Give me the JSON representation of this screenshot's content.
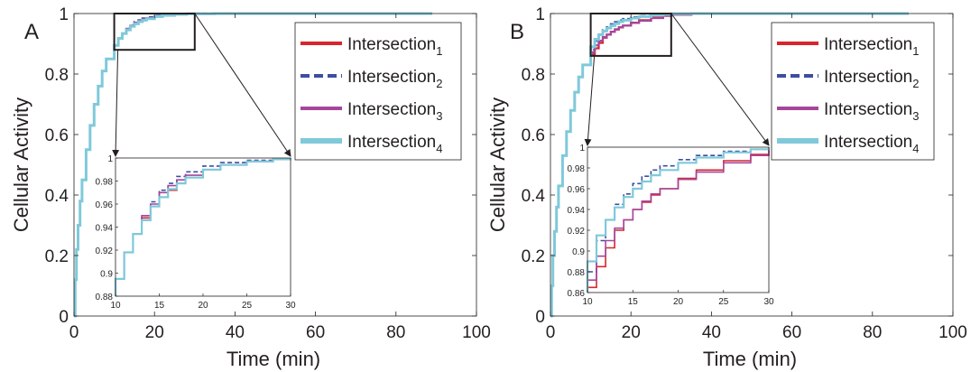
{
  "chart_data": [
    {
      "panel_label": "A",
      "type": "line",
      "xlabel": "Time (min)",
      "ylabel": "Cellular Activity",
      "xlim": [
        0,
        100
      ],
      "ylim": [
        0,
        1
      ],
      "xticks": [
        "0",
        "20",
        "40",
        "60",
        "80",
        "100"
      ],
      "yticks": [
        "0",
        "0.2",
        "0.4",
        "0.6",
        "0.8",
        "1"
      ],
      "grid": false,
      "legend_position": "top-right",
      "series": [
        {
          "name": "Intersection",
          "subscript": "1",
          "color": "#d7262e",
          "dash": "solid",
          "x": [
            0,
            0.3,
            0.6,
            1,
            1.5,
            2,
            3,
            4,
            5,
            6,
            7,
            8,
            10,
            11,
            12,
            13,
            14,
            15,
            16,
            17,
            18,
            20,
            22,
            25,
            28,
            30,
            35,
            40,
            50,
            60,
            70,
            80,
            89
          ],
          "y": [
            0,
            0.12,
            0.22,
            0.3,
            0.38,
            0.45,
            0.55,
            0.63,
            0.7,
            0.76,
            0.81,
            0.85,
            0.895,
            0.918,
            0.934,
            0.948,
            0.958,
            0.966,
            0.972,
            0.978,
            0.983,
            0.99,
            0.994,
            0.997,
            0.999,
            0.9995,
            1,
            1,
            1,
            1,
            1,
            1,
            1
          ]
        },
        {
          "name": "Intersection",
          "subscript": "2",
          "color": "#3d4ea2",
          "dash": "dashed",
          "x": [
            0,
            0.3,
            0.6,
            1,
            1.5,
            2,
            3,
            4,
            5,
            6,
            7,
            8,
            10,
            11,
            12,
            13,
            14,
            15,
            16,
            17,
            18,
            20,
            22,
            25,
            28,
            30,
            35,
            40,
            50,
            60,
            70,
            80,
            89
          ],
          "y": [
            0,
            0.12,
            0.22,
            0.3,
            0.38,
            0.45,
            0.55,
            0.63,
            0.7,
            0.76,
            0.81,
            0.85,
            0.895,
            0.918,
            0.934,
            0.95,
            0.962,
            0.972,
            0.978,
            0.984,
            0.988,
            0.993,
            0.996,
            0.998,
            0.999,
            1,
            1,
            1,
            1,
            1,
            1,
            1,
            1
          ]
        },
        {
          "name": "Intersection",
          "subscript": "3",
          "color": "#a4479c",
          "dash": "solid",
          "x": [
            0,
            0.3,
            0.6,
            1,
            1.5,
            2,
            3,
            4,
            5,
            6,
            7,
            8,
            10,
            11,
            12,
            13,
            14,
            15,
            16,
            17,
            18,
            20,
            22,
            25,
            28,
            30,
            35,
            40,
            50,
            60,
            70,
            80,
            89
          ],
          "y": [
            0,
            0.12,
            0.22,
            0.3,
            0.38,
            0.45,
            0.55,
            0.63,
            0.7,
            0.76,
            0.81,
            0.85,
            0.895,
            0.918,
            0.934,
            0.95,
            0.96,
            0.97,
            0.976,
            0.981,
            0.985,
            0.99,
            0.994,
            0.997,
            0.999,
            0.9995,
            1,
            1,
            1,
            1,
            1,
            1,
            1
          ]
        },
        {
          "name": "Intersection",
          "subscript": "4",
          "color": "#7fc9da",
          "dash": "solid",
          "x": [
            0,
            0.3,
            0.6,
            1,
            1.5,
            2,
            3,
            4,
            5,
            6,
            7,
            8,
            10,
            11,
            12,
            13,
            14,
            15,
            16,
            17,
            18,
            20,
            22,
            25,
            28,
            30,
            35,
            40,
            50,
            60,
            70,
            80,
            89
          ],
          "y": [
            0,
            0.12,
            0.22,
            0.3,
            0.38,
            0.45,
            0.55,
            0.63,
            0.7,
            0.76,
            0.81,
            0.85,
            0.895,
            0.918,
            0.934,
            0.946,
            0.958,
            0.966,
            0.973,
            0.978,
            0.983,
            0.99,
            0.994,
            0.997,
            0.999,
            0.9995,
            1,
            1,
            1,
            1,
            1,
            1,
            1
          ]
        }
      ],
      "zoom_box": {
        "xlim": [
          10,
          30
        ],
        "ylim": [
          0.88,
          1
        ]
      },
      "inset": {
        "xlim": [
          10,
          30
        ],
        "ylim": [
          0.88,
          1
        ],
        "xticks": [
          "10",
          "15",
          "20",
          "25",
          "30"
        ],
        "yticks": [
          "0.88",
          "0.9",
          "0.92",
          "0.94",
          "0.96",
          "0.98",
          "1"
        ]
      }
    },
    {
      "panel_label": "B",
      "type": "line",
      "xlabel": "Time (min)",
      "ylabel": "Cellular Activity",
      "xlim": [
        0,
        100
      ],
      "ylim": [
        0,
        1
      ],
      "xticks": [
        "0",
        "20",
        "40",
        "60",
        "80",
        "100"
      ],
      "yticks": [
        "0",
        "0.2",
        "0.4",
        "0.6",
        "0.8",
        "1"
      ],
      "grid": false,
      "legend_position": "top-right",
      "series": [
        {
          "name": "Intersection",
          "subscript": "1",
          "color": "#d7262e",
          "dash": "solid",
          "x": [
            0,
            0.3,
            0.6,
            1,
            1.5,
            2,
            3,
            4,
            5,
            6,
            7,
            8,
            10,
            11,
            12,
            13,
            14,
            15,
            16,
            17,
            18,
            20,
            22,
            25,
            28,
            30,
            35,
            40,
            50,
            60,
            70,
            80,
            89
          ],
          "y": [
            0,
            0.1,
            0.2,
            0.28,
            0.36,
            0.43,
            0.53,
            0.61,
            0.68,
            0.74,
            0.79,
            0.83,
            0.865,
            0.885,
            0.903,
            0.92,
            0.93,
            0.94,
            0.947,
            0.954,
            0.96,
            0.97,
            0.978,
            0.987,
            0.993,
            0.996,
            0.999,
            1,
            1,
            1,
            1,
            1,
            1
          ]
        },
        {
          "name": "Intersection",
          "subscript": "2",
          "color": "#3d4ea2",
          "dash": "dashed",
          "x": [
            0,
            0.3,
            0.6,
            1,
            1.5,
            2,
            3,
            4,
            5,
            6,
            7,
            8,
            10,
            11,
            12,
            13,
            14,
            15,
            16,
            17,
            18,
            20,
            22,
            25,
            28,
            30,
            35,
            40,
            50,
            60,
            70,
            80,
            89
          ],
          "y": [
            0,
            0.1,
            0.2,
            0.28,
            0.36,
            0.43,
            0.53,
            0.61,
            0.68,
            0.74,
            0.79,
            0.83,
            0.88,
            0.91,
            0.93,
            0.945,
            0.955,
            0.965,
            0.972,
            0.978,
            0.982,
            0.988,
            0.992,
            0.996,
            0.998,
            0.999,
            1,
            1,
            1,
            1,
            1,
            1,
            1
          ]
        },
        {
          "name": "Intersection",
          "subscript": "3",
          "color": "#a4479c",
          "dash": "solid",
          "x": [
            0,
            0.3,
            0.6,
            1,
            1.5,
            2,
            3,
            4,
            5,
            6,
            7,
            8,
            10,
            11,
            12,
            13,
            14,
            15,
            16,
            17,
            18,
            20,
            22,
            25,
            28,
            30,
            35,
            40,
            50,
            60,
            70,
            80,
            89
          ],
          "y": [
            0,
            0.1,
            0.2,
            0.28,
            0.36,
            0.43,
            0.53,
            0.61,
            0.68,
            0.74,
            0.79,
            0.83,
            0.872,
            0.895,
            0.91,
            0.922,
            0.93,
            0.94,
            0.948,
            0.955,
            0.96,
            0.969,
            0.976,
            0.985,
            0.992,
            0.996,
            0.999,
            1,
            1,
            1,
            1,
            1,
            1
          ]
        },
        {
          "name": "Intersection",
          "subscript": "4",
          "color": "#7fc9da",
          "dash": "solid",
          "x": [
            0,
            0.3,
            0.6,
            1,
            1.5,
            2,
            3,
            4,
            5,
            6,
            7,
            8,
            10,
            11,
            12,
            13,
            14,
            15,
            16,
            17,
            18,
            20,
            22,
            25,
            28,
            30,
            35,
            40,
            50,
            60,
            70,
            80,
            89
          ],
          "y": [
            0,
            0.1,
            0.2,
            0.28,
            0.36,
            0.43,
            0.53,
            0.61,
            0.68,
            0.74,
            0.79,
            0.83,
            0.89,
            0.915,
            0.93,
            0.942,
            0.952,
            0.96,
            0.967,
            0.973,
            0.978,
            0.985,
            0.99,
            0.995,
            0.998,
            0.999,
            1,
            1,
            1,
            1,
            1,
            1,
            1
          ]
        }
      ],
      "zoom_box": {
        "xlim": [
          10,
          30
        ],
        "ylim": [
          0.86,
          1
        ]
      },
      "inset": {
        "xlim": [
          10,
          30
        ],
        "ylim": [
          0.86,
          1
        ],
        "xticks": [
          "10",
          "15",
          "20",
          "25",
          "30"
        ],
        "yticks": [
          "0.86",
          "0.88",
          "0.9",
          "0.92",
          "0.94",
          "0.96",
          "0.98",
          "1"
        ]
      }
    }
  ]
}
